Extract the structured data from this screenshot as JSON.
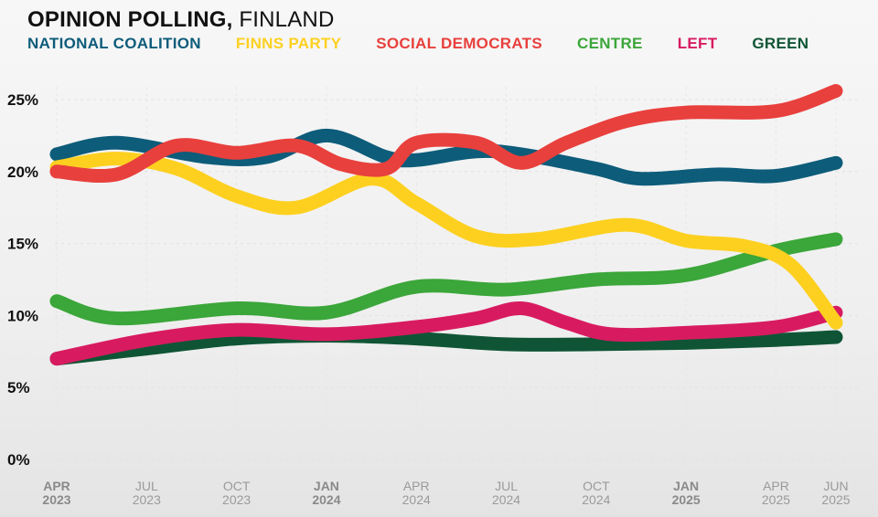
{
  "chart_data": {
    "type": "line",
    "title_bold": "OPINION POLLING,",
    "title_rest": " FINLAND",
    "ylim": [
      0,
      25
    ],
    "yticks": [
      "25%",
      "20%",
      "15%",
      "10%",
      "5%",
      "0%"
    ],
    "ytick_values": [
      25,
      20,
      15,
      10,
      5,
      0
    ],
    "x_range": [
      0,
      26
    ],
    "xticks": [
      {
        "month": "APR",
        "year": "2023",
        "x": 0,
        "bold": true
      },
      {
        "month": "JUL",
        "year": "2023",
        "x": 3,
        "bold": false
      },
      {
        "month": "OCT",
        "year": "2023",
        "x": 6,
        "bold": false
      },
      {
        "month": "JAN",
        "year": "2024",
        "x": 9,
        "bold": true
      },
      {
        "month": "APR",
        "year": "2024",
        "x": 12,
        "bold": false
      },
      {
        "month": "JUL",
        "year": "2024",
        "x": 15,
        "bold": false
      },
      {
        "month": "OCT",
        "year": "2024",
        "x": 18,
        "bold": false
      },
      {
        "month": "JAN",
        "year": "2025",
        "x": 21,
        "bold": true
      },
      {
        "month": "APR",
        "year": "2025",
        "x": 24,
        "bold": false
      },
      {
        "month": "JUN",
        "year": "2025",
        "x": 26,
        "bold": false
      }
    ],
    "series": [
      {
        "name": "GREEN",
        "color": "#0f5535",
        "x": [
          0,
          3,
          6,
          9,
          12,
          15,
          18,
          21,
          24,
          26
        ],
        "values": [
          7.0,
          7.7,
          8.4,
          8.6,
          8.4,
          8.0,
          8.0,
          8.1,
          8.3,
          8.5
        ]
      },
      {
        "name": "LEFT",
        "color": "#d81b60",
        "x": [
          0,
          3,
          6,
          9,
          12,
          14,
          15.5,
          17,
          18.5,
          21,
          24,
          26
        ],
        "values": [
          7.0,
          8.3,
          9.0,
          8.7,
          9.2,
          9.8,
          10.5,
          9.5,
          8.7,
          8.8,
          9.2,
          10.2
        ]
      },
      {
        "name": "CENTRE",
        "color": "#3ba63a",
        "x": [
          0,
          2,
          6,
          9,
          12,
          15,
          18,
          21,
          24,
          26
        ],
        "values": [
          11.0,
          9.8,
          10.5,
          10.2,
          12.0,
          11.8,
          12.5,
          12.8,
          14.5,
          15.3
        ]
      },
      {
        "name": "NATIONAL COALITION",
        "color": "#0d5c7a",
        "x": [
          0,
          2,
          5,
          7,
          9,
          11,
          12,
          14,
          15.5,
          18,
          19.5,
          22,
          24,
          26
        ],
        "values": [
          21.2,
          22.0,
          21.0,
          21.0,
          22.5,
          21.0,
          20.8,
          21.4,
          21.2,
          20.2,
          19.5,
          19.8,
          19.7,
          20.6
        ]
      },
      {
        "name": "FINNS PARTY",
        "color": "#fdd020",
        "x": [
          0,
          2,
          4,
          6,
          8,
          10.5,
          12,
          14,
          16,
          19,
          21,
          23,
          24.5,
          26
        ],
        "values": [
          20.3,
          20.9,
          20.2,
          18.3,
          17.5,
          19.5,
          17.8,
          15.5,
          15.3,
          16.3,
          15.2,
          14.8,
          13.5,
          9.5
        ]
      },
      {
        "name": "SOCIAL DEMOCRATS",
        "color": "#e8403d",
        "x": [
          0,
          2,
          4,
          6,
          8,
          9.5,
          11,
          12,
          14,
          15.5,
          17,
          19,
          21,
          24,
          26
        ],
        "values": [
          20.0,
          19.8,
          21.8,
          21.3,
          21.8,
          20.5,
          20.2,
          22.0,
          22.0,
          20.6,
          22.0,
          23.5,
          24.1,
          24.2,
          25.6
        ]
      }
    ],
    "legend": [
      {
        "name": "NATIONAL COALITION",
        "color": "#0d5c7a"
      },
      {
        "name": "FINNS PARTY",
        "color": "#fdd020"
      },
      {
        "name": "SOCIAL DEMOCRATS",
        "color": "#e8403d"
      },
      {
        "name": "CENTRE",
        "color": "#3ba63a"
      },
      {
        "name": "LEFT",
        "color": "#d81b60"
      },
      {
        "name": "GREEN",
        "color": "#0f5535"
      }
    ],
    "grid": true
  }
}
